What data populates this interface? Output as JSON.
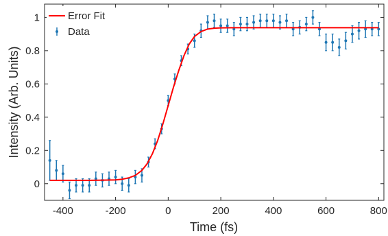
{
  "chart_data": {
    "type": "scatter",
    "title": "",
    "xlabel": "Time (fs)",
    "ylabel": "Intensity (Arb. Units)",
    "xlim": [
      -470,
      820
    ],
    "ylim": [
      -0.1,
      1.08
    ],
    "xticks": [
      -400,
      -200,
      0,
      200,
      400,
      600,
      800
    ],
    "yticks": [
      0,
      0.2,
      0.4,
      0.6,
      0.8,
      1
    ],
    "xtick_labels": [
      "-400",
      "-200",
      "0",
      "200",
      "400",
      "600",
      "800"
    ],
    "ytick_labels": [
      "0",
      "0.2",
      "0.4",
      "0.6",
      "0.8",
      "1"
    ],
    "grid": false,
    "legend_position": "top-left",
    "series": [
      {
        "name": "Data",
        "kind": "errorbar",
        "color": "#1f77b4",
        "x": [
          -450,
          -425,
          -400,
          -375,
          -350,
          -325,
          -300,
          -275,
          -250,
          -225,
          -200,
          -175,
          -150,
          -125,
          -100,
          -75,
          -50,
          -25,
          0,
          25,
          50,
          75,
          100,
          125,
          150,
          175,
          200,
          225,
          250,
          275,
          300,
          325,
          350,
          375,
          400,
          425,
          450,
          475,
          500,
          525,
          550,
          575,
          600,
          625,
          650,
          675,
          700,
          725,
          750,
          775,
          800
        ],
        "y": [
          0.14,
          0.08,
          0.06,
          -0.04,
          -0.01,
          -0.01,
          -0.01,
          0.03,
          0.02,
          0.03,
          0.04,
          0.0,
          -0.01,
          0.04,
          0.05,
          0.13,
          0.24,
          0.33,
          0.5,
          0.63,
          0.74,
          0.81,
          0.86,
          0.92,
          0.97,
          0.98,
          0.95,
          0.95,
          0.93,
          0.96,
          0.96,
          0.97,
          0.98,
          0.98,
          0.98,
          0.97,
          0.98,
          0.93,
          0.94,
          0.96,
          1.0,
          0.93,
          0.85,
          0.85,
          0.82,
          0.86,
          0.9,
          0.92,
          0.93,
          0.93,
          0.93
        ],
        "err": [
          0.12,
          0.06,
          0.05,
          0.05,
          0.04,
          0.04,
          0.04,
          0.04,
          0.04,
          0.04,
          0.04,
          0.04,
          0.04,
          0.04,
          0.04,
          0.03,
          0.03,
          0.03,
          0.03,
          0.03,
          0.03,
          0.03,
          0.04,
          0.04,
          0.04,
          0.04,
          0.04,
          0.04,
          0.04,
          0.04,
          0.04,
          0.04,
          0.04,
          0.04,
          0.04,
          0.04,
          0.04,
          0.04,
          0.04,
          0.04,
          0.04,
          0.04,
          0.05,
          0.05,
          0.05,
          0.05,
          0.05,
          0.05,
          0.05,
          0.04,
          0.04
        ]
      },
      {
        "name": "Error Fit",
        "kind": "line",
        "color": "#ff0000",
        "x": [
          -450,
          -400,
          -350,
          -300,
          -250,
          -200,
          -175,
          -150,
          -125,
          -100,
          -80,
          -60,
          -40,
          -20,
          0,
          20,
          40,
          60,
          80,
          100,
          125,
          150,
          175,
          200,
          250,
          300,
          400,
          500,
          600,
          700,
          800
        ],
        "y": [
          0.02,
          0.02,
          0.02,
          0.02,
          0.021,
          0.023,
          0.027,
          0.035,
          0.05,
          0.08,
          0.12,
          0.18,
          0.26,
          0.36,
          0.47,
          0.58,
          0.68,
          0.77,
          0.84,
          0.885,
          0.915,
          0.93,
          0.935,
          0.937,
          0.938,
          0.938,
          0.938,
          0.938,
          0.938,
          0.938,
          0.938
        ]
      }
    ]
  }
}
